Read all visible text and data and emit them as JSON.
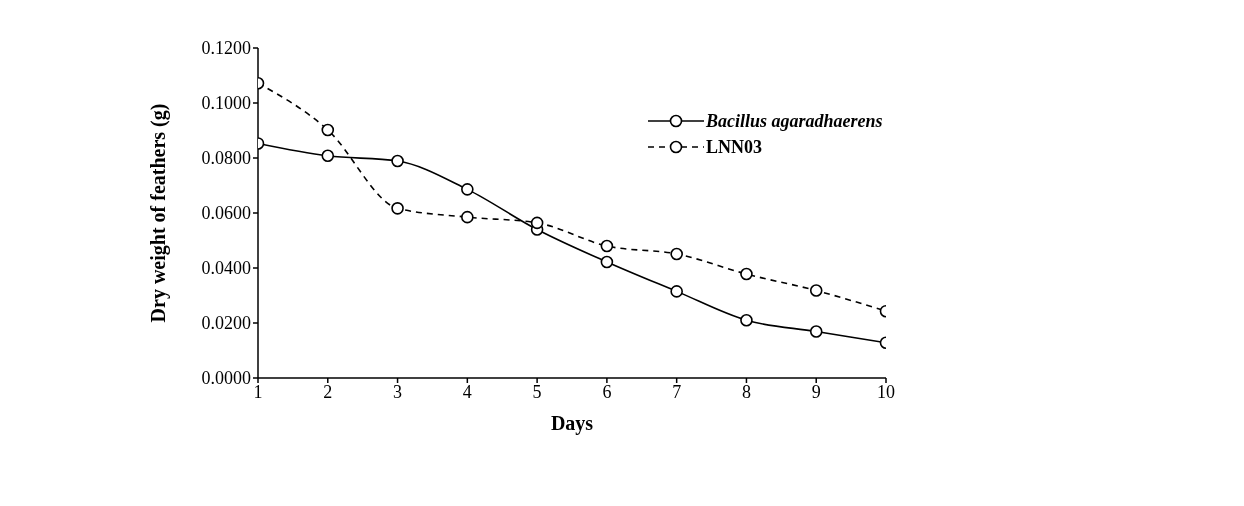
{
  "chart_data": {
    "type": "line",
    "xlabel": "Days",
    "ylabel": "Dry weight of feathers  (g)",
    "x": [
      1,
      2,
      3,
      4,
      5,
      6,
      7,
      8,
      9,
      10
    ],
    "xlim": [
      1,
      10
    ],
    "xticks": [
      1,
      2,
      3,
      4,
      5,
      6,
      7,
      8,
      9,
      10
    ],
    "ylim": [
      0,
      0.12
    ],
    "yticks": [
      {
        "value": 0,
        "label": "0.0000"
      },
      {
        "value": 0.02,
        "label": "0.0200"
      },
      {
        "value": 0.04,
        "label": "0.0400"
      },
      {
        "value": 0.06,
        "label": "0.0600"
      },
      {
        "value": 0.08,
        "label": "0.0800"
      },
      {
        "value": 0.1,
        "label": "0.1000"
      },
      {
        "value": 0.12,
        "label": "0.1200"
      }
    ],
    "grid": false,
    "legend": "top right",
    "marker": "circle",
    "series": [
      {
        "name": "Bacillus agaradhaerens",
        "color": "#000000",
        "line_style": "solid",
        "values": [
          0.0853,
          0.0808,
          0.0789,
          0.0686,
          0.054,
          0.0422,
          0.0315,
          0.021,
          0.0169,
          0.0128
        ]
      },
      {
        "name": "LNN03",
        "color": "#000000",
        "line_style": "dashed",
        "values": [
          0.1072,
          0.0902,
          0.0617,
          0.0585,
          0.0564,
          0.048,
          0.0451,
          0.0378,
          0.0318,
          0.0243
        ]
      }
    ]
  }
}
